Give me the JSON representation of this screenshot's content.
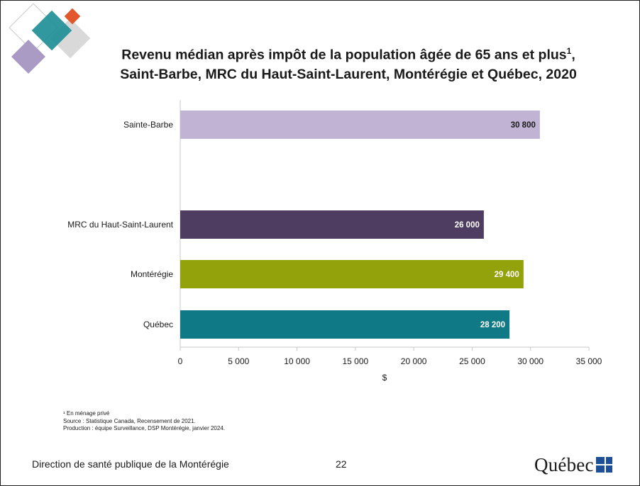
{
  "title_line1": "Revenu médian après impôt de la population âgée de 65 ans et plus",
  "title_sup": "1",
  "title_comma": ",",
  "title_line2": "Saint-Barbe, MRC du Haut-Saint-Laurent, Montérégie et Québec, 2020",
  "chart_data": {
    "type": "bar",
    "orientation": "horizontal",
    "categories": [
      "Sainte-Barbe",
      "MRC du Haut-Saint-Laurent",
      "Montérégie",
      "Québec"
    ],
    "values": [
      30800,
      26000,
      29400,
      28200
    ],
    "value_labels": [
      "30 800",
      "26 000",
      "29 400",
      "28 200"
    ],
    "colors": [
      "#c0b3d3",
      "#4f3d61",
      "#93a20a",
      "#0f7a85"
    ],
    "label_colors": [
      "#1a1a1a",
      "#ffffff",
      "#ffffff",
      "#ffffff"
    ],
    "xlabel": "$",
    "xlim": [
      0,
      35000
    ],
    "xticks": [
      0,
      5000,
      10000,
      15000,
      20000,
      25000,
      30000,
      35000
    ],
    "xtick_labels": [
      "0",
      "5 000",
      "10 000",
      "15 000",
      "20 000",
      "25 000",
      "30 000",
      "35 000"
    ],
    "grid": false,
    "legend": "none"
  },
  "footnotes": {
    "note1": "¹ En ménage privé",
    "source": "Source : Statistique Canada, Recensement de 2021.",
    "production": "Production : équipe Surveillance, DSP Montérégie, janvier 2024."
  },
  "footer": {
    "org": "Direction de santé publique de la Montérégie",
    "page": "22",
    "logo_text": "Québec"
  },
  "colors": {
    "deco_teal": "#1f8f98",
    "deco_orange": "#e2572b",
    "deco_purple": "#a99bc3",
    "deco_gray": "#d9d9d9"
  }
}
